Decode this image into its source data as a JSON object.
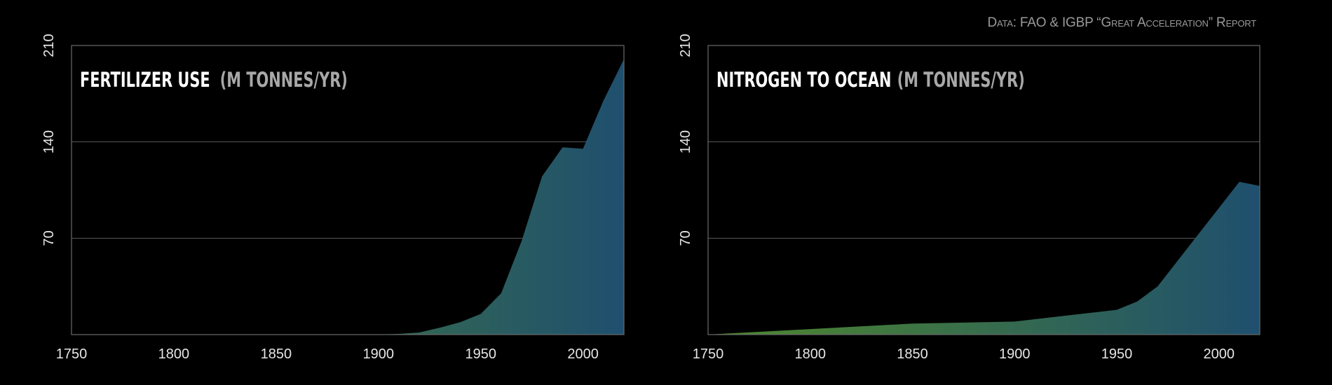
{
  "source": "Data: FAO & IGBP “Great Acceleration” Report",
  "colors": {
    "fill_start": "#4f8a2b",
    "fill_end": "#1f4f6e",
    "background": "#000000"
  },
  "chart_data": [
    {
      "type": "area",
      "title": "FERTILIZER USE",
      "unit": "(M TONNES/YR)",
      "xlim": [
        1750,
        2020
      ],
      "ylim": [
        0,
        210
      ],
      "xticks": [
        "1750",
        "1800",
        "1850",
        "1900",
        "1950",
        "2000"
      ],
      "yticks": [
        "70",
        "140",
        "210"
      ],
      "grid": true,
      "x": [
        1750,
        1800,
        1850,
        1900,
        1910,
        1920,
        1930,
        1940,
        1950,
        1960,
        1970,
        1980,
        1990,
        2000,
        2010,
        2020
      ],
      "y": [
        0,
        0,
        0,
        0,
        0.5,
        1.5,
        5,
        9,
        15,
        30,
        68,
        115,
        136,
        135,
        170,
        200
      ]
    },
    {
      "type": "area",
      "title": "NITROGEN TO OCEAN",
      "unit": "(M TONNES/YR)",
      "xlim": [
        1750,
        2020
      ],
      "ylim": [
        0,
        210
      ],
      "xticks": [
        "1750",
        "1800",
        "1850",
        "1900",
        "1950",
        "2000"
      ],
      "yticks": [
        "70",
        "140",
        "210"
      ],
      "grid": true,
      "x": [
        1750,
        1800,
        1850,
        1900,
        1950,
        1960,
        1970,
        1980,
        1990,
        2000,
        2010,
        2020
      ],
      "y": [
        0,
        4,
        8,
        9.5,
        18,
        24,
        35,
        54,
        73,
        92,
        111,
        108
      ]
    }
  ]
}
